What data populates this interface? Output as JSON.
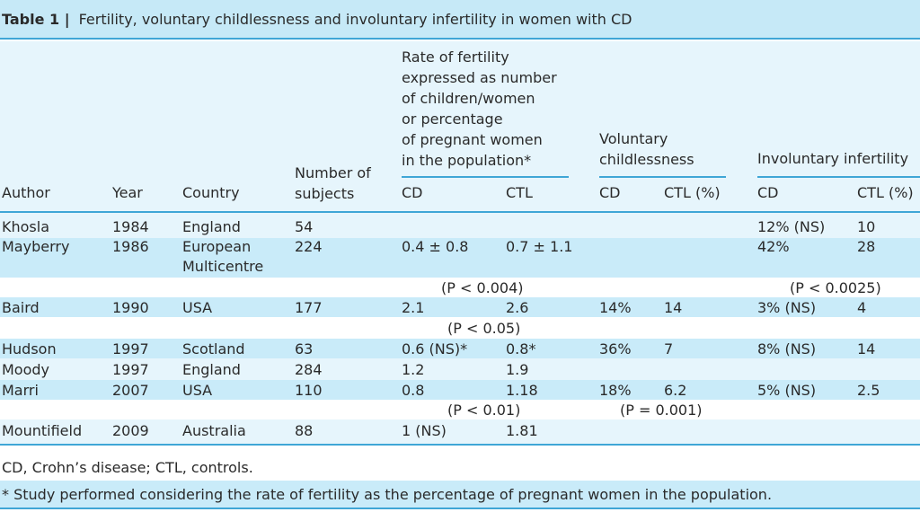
{
  "title": {
    "label": "Table 1 |",
    "text": "Fertility, voluntary childlessness and involuntary infertility in women with CD"
  },
  "headers": {
    "author": "Author",
    "year": "Year",
    "country": "Country",
    "subjects_1": "Number of",
    "subjects_2": "subjects",
    "fertility_1": "Rate of fertility",
    "fertility_2": "expressed as number",
    "fertility_3": "of children/women",
    "fertility_4": "or percentage",
    "fertility_5": "of pregnant women",
    "fertility_6": "in the population*",
    "voluntary_1": "Voluntary",
    "voluntary_2": "childlessness",
    "involuntary": "Involuntary infertility",
    "fert_cd": "CD",
    "fert_ctl": "CTL",
    "vol_cd": "CD",
    "vol_ctl": "CTL (%)",
    "inv_cd": "CD",
    "inv_ctl": "CTL (%)"
  },
  "rows": [
    {
      "author": "Khosla",
      "year": "1984",
      "country": "England",
      "subjects": "54",
      "fert_cd": "",
      "fert_ctl": "",
      "vol_cd": "",
      "vol_ctl": "",
      "inv_cd": "12% (NS)",
      "inv_ctl": "10"
    },
    {
      "author": "Mayberry",
      "year": "1986",
      "country": "European",
      "country2": "Multicentre",
      "subjects": "224",
      "fert_cd": "0.4 ± 0.8",
      "fert_ctl": "0.7 ± 1.1",
      "vol_cd": "",
      "vol_ctl": "",
      "inv_cd": "42%",
      "inv_ctl": "28"
    },
    {
      "author": "Baird",
      "year": "1990",
      "country": "USA",
      "subjects": "177",
      "fert_cd": "2.1",
      "fert_ctl": "2.6",
      "vol_cd": "14%",
      "vol_ctl": "14",
      "inv_cd": "3% (NS)",
      "inv_ctl": "4"
    },
    {
      "author": "Hudson",
      "year": "1997",
      "country": "Scotland",
      "subjects": "63",
      "fert_cd": "0.6 (NS)*",
      "fert_ctl": "0.8*",
      "vol_cd": "36%",
      "vol_ctl": "7",
      "inv_cd": "8% (NS)",
      "inv_ctl": "14"
    },
    {
      "author": "Moody",
      "year": "1997",
      "country": "England",
      "subjects": "284",
      "fert_cd": "1.2",
      "fert_ctl": "1.9",
      "vol_cd": "",
      "vol_ctl": "",
      "inv_cd": "",
      "inv_ctl": ""
    },
    {
      "author": "Marri",
      "year": "2007",
      "country": "USA",
      "subjects": "110",
      "fert_cd": "0.8",
      "fert_ctl": "1.18",
      "vol_cd": "18%",
      "vol_ctl": "6.2",
      "inv_cd": "5% (NS)",
      "inv_ctl": "2.5"
    },
    {
      "author": "Mountifield",
      "year": "2009",
      "country": "Australia",
      "subjects": "88",
      "fert_cd": "1 (NS)",
      "fert_ctl": "1.81",
      "vol_cd": "",
      "vol_ctl": "",
      "inv_cd": "",
      "inv_ctl": ""
    }
  ],
  "pvalues": {
    "mayberry_fert": "(P < 0.004)",
    "mayberry_inv": "(P < 0.0025)",
    "baird_fert": "(P < 0.05)",
    "marri_fert": "(P < 0.01)",
    "marri_vol": "(P = 0.001)"
  },
  "footnotes": {
    "abbrev": "CD, Crohn’s disease; CTL, controls.",
    "star": "* Study performed considering the rate of fertility as the percentage of pregnant women in the population."
  }
}
